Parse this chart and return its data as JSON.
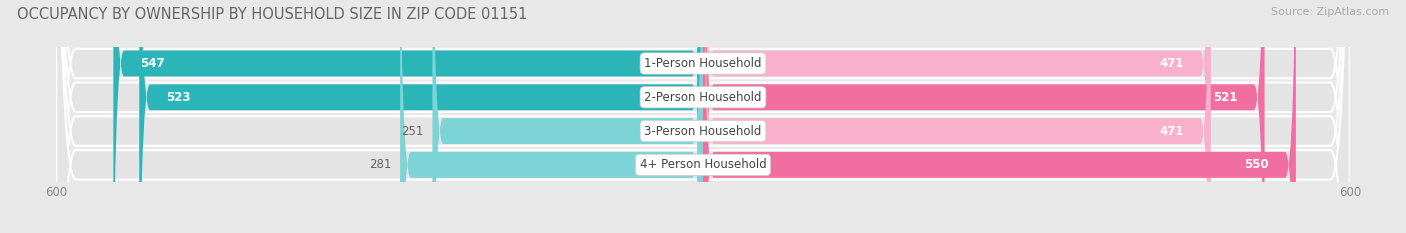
{
  "title": "OCCUPANCY BY OWNERSHIP BY HOUSEHOLD SIZE IN ZIP CODE 01151",
  "source": "Source: ZipAtlas.com",
  "categories": [
    "1-Person Household",
    "2-Person Household",
    "3-Person Household",
    "4+ Person Household"
  ],
  "owner_values": [
    547,
    523,
    251,
    281
  ],
  "renter_values": [
    471,
    521,
    471,
    550
  ],
  "owner_color_dark": "#2bb5b8",
  "owner_color_light": "#7dd4d6",
  "renter_color_dark": "#f06fa0",
  "renter_color_light": "#f8b0cb",
  "axis_max": 600,
  "bg_color": "#e8e8e8",
  "bar_bg_color": "#d8d8d8",
  "row_bg_color": "#ebebeb",
  "title_fontsize": 10.5,
  "source_fontsize": 8,
  "bar_label_fontsize": 8.5,
  "category_fontsize": 8.5,
  "axis_fontsize": 8.5,
  "legend_fontsize": 9
}
